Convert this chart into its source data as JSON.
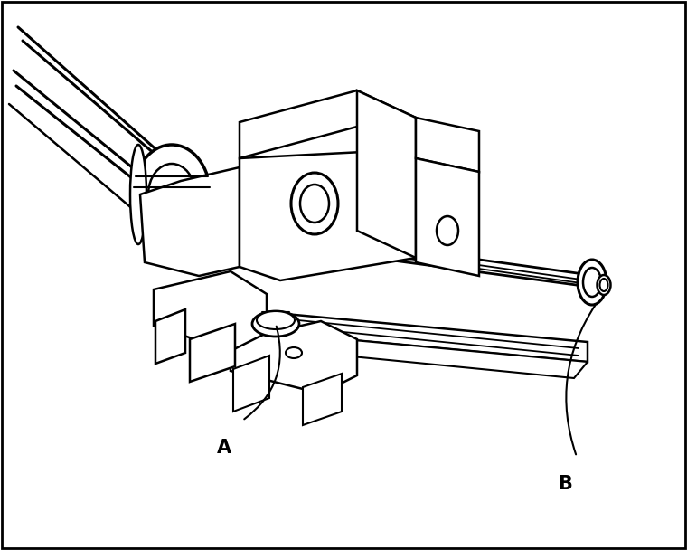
{
  "bg_color": "#ffffff",
  "line_color": "#000000",
  "lw": 1.8,
  "lw_thick": 2.5,
  "lw_thin": 1.2,
  "fig_width": 7.6,
  "fig_height": 6.08,
  "label_A": "A",
  "label_B": "B",
  "label_fontsize": 15,
  "label_fontweight": "bold"
}
